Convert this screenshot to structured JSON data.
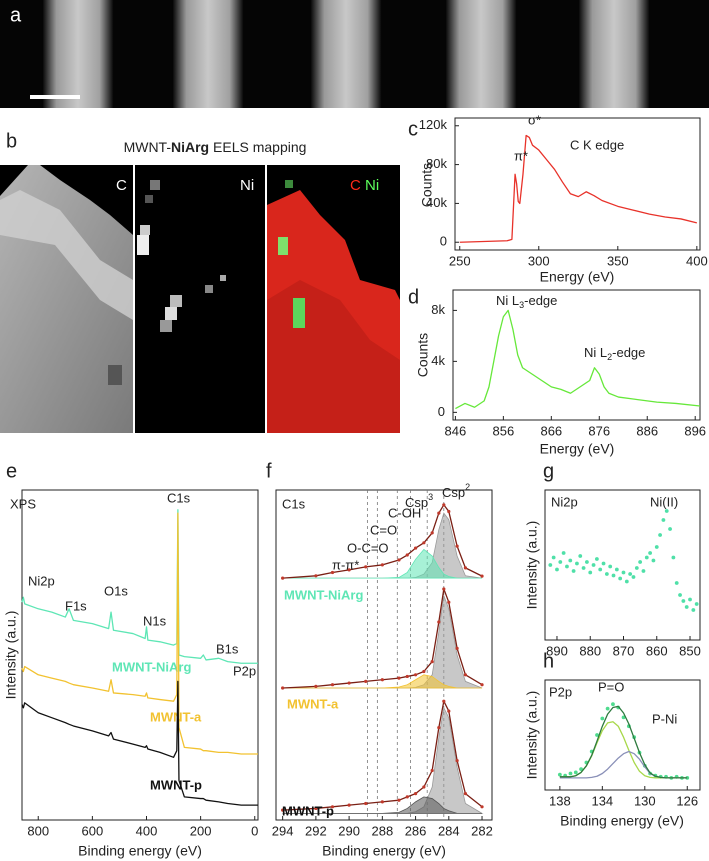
{
  "panels": {
    "a": {
      "label": "a"
    },
    "b": {
      "label": "b",
      "title_parts": [
        "MWNT-",
        "NiArg",
        " EELS mapping"
      ],
      "maps": [
        "C",
        "Ni"
      ],
      "overlay": [
        "C",
        "Ni"
      ]
    }
  },
  "chart_data": [
    {
      "type": "line",
      "label": "c",
      "xlabel": "Energy (eV)",
      "ylabel": "Counts",
      "xlim": [
        247,
        402
      ],
      "ylim": [
        -8000,
        128000
      ],
      "xticks": [
        250,
        300,
        350,
        400
      ],
      "yticks": [
        0,
        {
          "value": 40000,
          "label": "40k"
        },
        {
          "value": 80000,
          "label": "80k"
        },
        {
          "value": 120000,
          "label": "120k"
        }
      ],
      "annotations": [
        "π*",
        "σ*",
        "C K edge"
      ],
      "x": [
        250,
        260,
        270,
        280,
        283,
        285,
        286,
        287,
        288,
        290,
        292,
        294,
        296,
        300,
        305,
        310,
        315,
        320,
        325,
        330,
        335,
        340,
        350,
        360,
        370,
        380,
        390,
        400
      ],
      "series": [
        {
          "color": "#e8322a",
          "values": [
            0,
            500,
            1000,
            1500,
            3000,
            70000,
            60000,
            42000,
            40000,
            70000,
            110000,
            108000,
            100000,
            95000,
            85000,
            75000,
            62000,
            50000,
            47000,
            52000,
            48000,
            43000,
            37000,
            33000,
            29000,
            26000,
            24000,
            20000
          ]
        }
      ]
    },
    {
      "type": "line",
      "label": "d",
      "xlabel": "Energy (eV)",
      "ylabel": "Counts",
      "xlim": [
        845.5,
        897
      ],
      "ylim": [
        -600,
        9600
      ],
      "xticks": [
        846,
        856,
        866,
        876,
        886,
        896
      ],
      "yticks": [
        0,
        {
          "value": 4000,
          "label": "4k"
        },
        {
          "value": 8000,
          "label": "8k"
        }
      ],
      "annotations": [
        {
          "text": "Ni L",
          "sub": "3",
          "tail": "-edge"
        },
        {
          "text": "Ni L",
          "sub": "2",
          "tail": "-edge"
        }
      ],
      "x": [
        846,
        848,
        850,
        852,
        853,
        854,
        855,
        856,
        857,
        858,
        859,
        860,
        862,
        864,
        866,
        868,
        870,
        872,
        874,
        875,
        876,
        877,
        878,
        880,
        884,
        888,
        892,
        897
      ],
      "series": [
        {
          "color": "#66e83a",
          "values": [
            300,
            700,
            400,
            900,
            2000,
            4000,
            6000,
            7500,
            8000,
            6500,
            4500,
            3500,
            3000,
            2500,
            2000,
            1800,
            1500,
            2000,
            2500,
            3500,
            3000,
            2000,
            1500,
            1200,
            1000,
            800,
            700,
            500
          ]
        }
      ]
    },
    {
      "type": "line",
      "label": "e",
      "xlabel": "Binding energy (eV)",
      "ylabel": "Intensity (a.u.)",
      "xlim": [
        860,
        -12
      ],
      "ylim": [
        0,
        100
      ],
      "xticks": [
        800,
        600,
        400,
        200,
        0
      ],
      "annotations": [
        "XPS",
        "C1s",
        "Ni2p",
        "F1s",
        "O1s",
        "N1s",
        "B1s",
        "P2p"
      ],
      "x": [
        860,
        855,
        850,
        800,
        750,
        700,
        686,
        670,
        600,
        540,
        531,
        522,
        450,
        405,
        400,
        395,
        350,
        300,
        288,
        284,
        280,
        260,
        200,
        190,
        180,
        133,
        100,
        50,
        0,
        -12
      ],
      "series": [
        {
          "name": "MWNT-NiArg",
          "color": "#5ee6b5",
          "values": [
            66,
            67.5,
            65.5,
            64,
            63,
            61.5,
            64,
            60.5,
            59.5,
            58,
            63,
            57.5,
            56.5,
            55,
            58.5,
            54.5,
            54,
            53,
            53.5,
            94,
            50,
            49.5,
            49,
            50,
            48.5,
            49,
            48,
            47.5,
            47.5,
            47.5
          ]
        },
        {
          "name": "MWNT-a",
          "color": "#f2c230",
          "values": [
            46,
            45,
            46.5,
            44,
            43,
            42,
            41.5,
            41,
            40,
            39,
            42.5,
            38.5,
            38,
            37.5,
            38.5,
            37,
            36.5,
            36,
            38,
            93,
            28,
            22,
            21.5,
            21,
            21,
            20.5,
            20.5,
            20,
            20,
            20
          ]
        },
        {
          "name": "MWNT-p",
          "color": "#111111",
          "values": [
            35,
            34,
            35.5,
            32.5,
            31,
            29.5,
            29,
            28.5,
            27,
            25.5,
            26.5,
            24.5,
            23,
            22,
            22.5,
            21.5,
            20.5,
            19,
            21,
            42,
            12,
            7,
            6.5,
            6.5,
            6,
            5.5,
            5,
            4.5,
            4.5,
            4.5
          ]
        }
      ]
    },
    {
      "type": "line",
      "label": "f",
      "xlabel": "Binding energy (eV)",
      "xlim": [
        294.4,
        281.4
      ],
      "ylim": [
        0,
        100
      ],
      "xticks": [
        294,
        292,
        290,
        288,
        286,
        284,
        282
      ],
      "ref_lines": [
        288.9,
        288.3,
        287.1,
        286.3,
        285.3,
        284.3
      ],
      "annotations": [
        "C1s",
        "π-π*",
        "O-C=O",
        "C=O",
        "C-OH",
        {
          "text": "Csp",
          "sup": "3"
        },
        {
          "text": "Csp",
          "sup": "2"
        }
      ],
      "x": [
        294,
        292,
        291,
        290,
        289,
        288,
        287,
        286.5,
        286,
        285.5,
        285,
        284.6,
        284.3,
        284,
        283.5,
        283,
        282
      ],
      "series": [
        {
          "color": "#9a9a9a",
          "fill": true,
          "values": [
            73.3,
            73.3,
            73.3,
            73.3,
            73.3,
            73.3,
            73.3,
            73.3,
            73.5,
            74.5,
            78,
            88,
            93,
            91,
            80,
            74,
            73.3
          ]
        },
        {
          "color": "#5ee6b5",
          "fill": true,
          "values": [
            73.3,
            73.3,
            73.3,
            73.3,
            73.3,
            73.3,
            73.5,
            75,
            79,
            82,
            80,
            76.5,
            74.5,
            73.8,
            73.3,
            73.3,
            73.3
          ]
        },
        {
          "name": "MWNT-NiArg",
          "label_color": "#5ee6b5",
          "color": "#c0392b",
          "mode": "line+markers",
          "values": [
            73.3,
            74,
            75,
            75.8,
            76.7,
            77.3,
            78.8,
            80.3,
            82.4,
            84,
            87,
            93,
            95.5,
            93.5,
            83,
            76.4,
            73.9
          ]
        },
        {
          "color": "#9a9a9a",
          "fill": true,
          "values": [
            40,
            40,
            40,
            40,
            40,
            40,
            40,
            40,
            40.2,
            41,
            44,
            57,
            68,
            64,
            50,
            42,
            40
          ]
        },
        {
          "color": "#f2c230",
          "fill": true,
          "values": [
            40,
            40,
            40,
            40,
            40,
            40,
            40.3,
            41,
            42.5,
            44,
            43.5,
            42,
            41,
            40.5,
            40,
            40,
            40
          ]
        },
        {
          "name": "MWNT-a",
          "label_color": "#f2c230",
          "color": "#c0392b",
          "mode": "line+markers",
          "values": [
            40,
            40.5,
            41,
            41.5,
            42,
            42.5,
            43,
            43.5,
            44,
            45,
            48,
            60,
            70,
            66,
            52,
            44,
            41
          ]
        },
        {
          "color": "#9a9a9a",
          "fill": true,
          "values": [
            2,
            2,
            2,
            2,
            2,
            2,
            2,
            2,
            2.5,
            4,
            10,
            25,
            34,
            31,
            16,
            5,
            2
          ]
        },
        {
          "color": "#555555",
          "fill": true,
          "values": [
            2,
            2,
            2,
            2,
            2,
            2,
            2.3,
            3.5,
            5.5,
            7,
            6.5,
            5,
            3.5,
            2.8,
            2,
            2,
            2
          ]
        },
        {
          "name": "MWNT-p",
          "label_color": "#111111",
          "color": "#c0392b",
          "mode": "line+markers",
          "values": [
            3,
            3.5,
            4,
            4.5,
            5,
            5.5,
            6,
            7,
            8,
            10,
            15,
            28,
            36,
            33,
            18,
            8,
            4
          ]
        }
      ]
    },
    {
      "type": "scatter",
      "label": "g",
      "ylabel": "Intensity (a.u.)",
      "xlim": [
        893.6,
        847
      ],
      "ylim": [
        0,
        100
      ],
      "xticks": [
        890,
        880,
        870,
        860,
        850
      ],
      "annotations": [
        "Ni2p",
        "Ni(II)"
      ],
      "x": [
        892,
        891,
        890,
        889,
        888,
        887,
        886,
        885,
        884,
        883,
        882,
        881,
        880,
        879,
        878,
        877,
        876,
        875,
        874,
        873,
        872,
        871,
        870,
        869,
        868,
        867,
        866,
        865,
        864,
        863,
        862,
        861,
        860,
        859,
        858,
        857,
        856,
        855,
        854,
        853,
        852,
        851,
        850,
        849,
        848
      ],
      "series": [
        {
          "color": "#4fe0a8",
          "mode": "markers",
          "values": [
            50,
            55,
            47,
            52,
            58,
            49,
            53,
            46,
            51,
            56,
            48,
            52,
            45,
            50,
            54,
            47,
            51,
            44,
            49,
            43,
            47,
            41,
            45,
            39,
            44,
            42,
            48,
            52,
            46,
            55,
            58,
            53,
            62,
            70,
            80,
            86,
            74,
            55,
            38,
            30,
            26,
            22,
            27,
            20,
            24
          ]
        }
      ]
    },
    {
      "type": "scatter",
      "label": "h",
      "xlabel": "Binding energy (eV)",
      "ylabel": "Intensity (a.u.)",
      "xlim": [
        139.4,
        124.8
      ],
      "ylim": [
        0,
        100
      ],
      "xticks": [
        138,
        134,
        130,
        126
      ],
      "annotations": [
        "P2p",
        "P=O",
        "P-Ni"
      ],
      "x": [
        138,
        137.5,
        137,
        136.5,
        136,
        135.5,
        135,
        134.5,
        134,
        133.5,
        133,
        132.5,
        132,
        131.5,
        131,
        130.5,
        130,
        129.5,
        129,
        128.5,
        128,
        127.5,
        127,
        126.5,
        126
      ],
      "series": [
        {
          "color": "#4fdc8f",
          "mode": "markers",
          "values": [
            14,
            13,
            15,
            16,
            19,
            25,
            35,
            50,
            65,
            74,
            78,
            75,
            66,
            58,
            48,
            34,
            22,
            15,
            13,
            12,
            12,
            11,
            12,
            11,
            11
          ]
        },
        {
          "color": "#a8d84a",
          "values": [
            12,
            12,
            12,
            13,
            16,
            22,
            31,
            43,
            54,
            61,
            62,
            58,
            48,
            36,
            25,
            17,
            13,
            11.5,
            11,
            11,
            11,
            11,
            11,
            11,
            11
          ]
        },
        {
          "color": "#8a90b8",
          "values": [
            11,
            11,
            11,
            11,
            11,
            11,
            11.5,
            12.5,
            15,
            19,
            24,
            29,
            33,
            35,
            33,
            28,
            21,
            15,
            12.5,
            11.5,
            11,
            11,
            11,
            11,
            11
          ]
        },
        {
          "color": "#2d7a3e",
          "values": [
            12,
            12,
            12,
            13,
            16,
            22,
            31.5,
            44.5,
            58,
            69,
            75,
            76,
            70,
            60,
            47,
            34,
            23,
            15.5,
            12.5,
            11.5,
            11,
            11,
            11,
            11,
            11
          ]
        }
      ]
    }
  ]
}
